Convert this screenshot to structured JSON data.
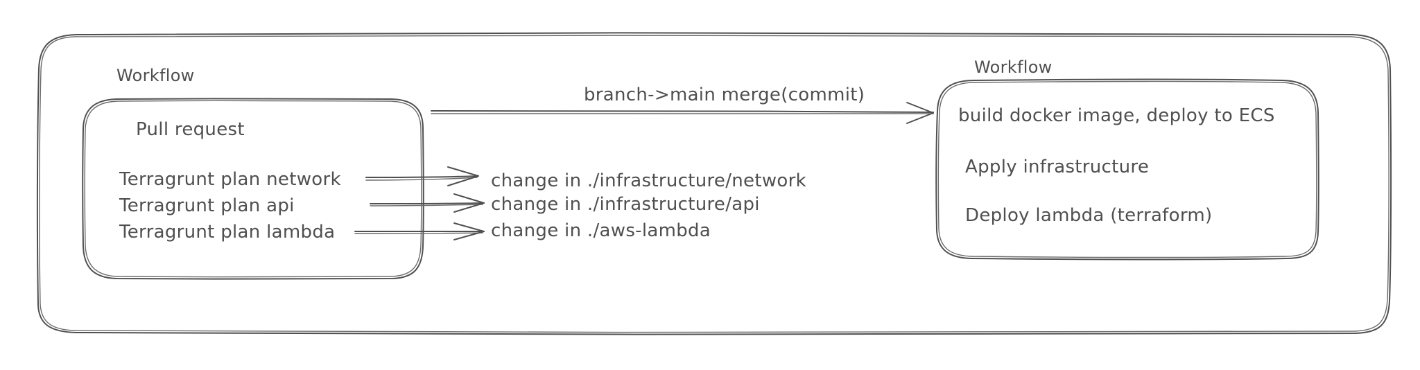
{
  "outer_container": {
    "left_label": "Workflow",
    "right_label": "Workflow"
  },
  "pull_request_box": {
    "title": "Pull request",
    "items": [
      "Terragrunt plan network",
      "Terragrunt plan api",
      "Terragrunt plan lambda"
    ]
  },
  "changes": [
    "change in ./infrastructure/network",
    "change in ./infrastructure/api",
    "change in ./aws-lambda"
  ],
  "merge_arrow": {
    "label": "branch->main merge(commit)"
  },
  "deploy_box": {
    "items": [
      "build docker image, deploy to ECS",
      "Apply infrastructure",
      "Deploy lambda (terraform)"
    ]
  }
}
